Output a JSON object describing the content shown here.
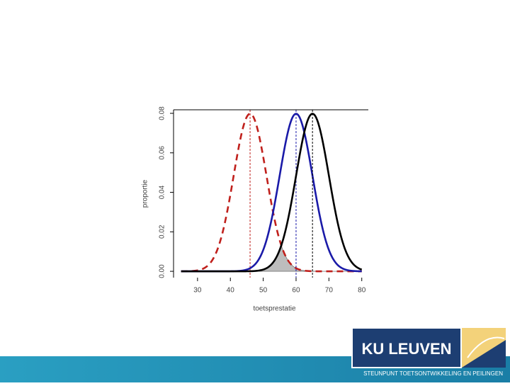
{
  "chart_data": {
    "type": "normal-curves",
    "x_label": "toetsprestatie",
    "y_label": "proportie",
    "xlim": [
      22.7,
      82
    ],
    "ylim": [
      -0.0032,
      0.0818
    ],
    "xticks": [
      30,
      40,
      50,
      60,
      70,
      80
    ],
    "yticks": [
      {
        "value": 0,
        "label": "0.00"
      },
      {
        "value": 0.02,
        "label": "0.02"
      },
      {
        "value": 0.04,
        "label": "0.04"
      },
      {
        "value": 0.06,
        "label": "0.06"
      },
      {
        "value": 0.08,
        "label": "0.08"
      }
    ],
    "x_range": [
      25,
      80
    ],
    "series": [
      {
        "mean": 46,
        "sd": 5,
        "color": "#c0201c",
        "dashed": true
      },
      {
        "mean": 60,
        "sd": 5,
        "color": "#1a1aa8",
        "dashed": false
      },
      {
        "mean": 65,
        "sd": 5,
        "color": "#000000",
        "dashed": false
      }
    ],
    "mean_lines": true,
    "shaded_overlap": [
      0,
      2
    ],
    "shade_color": "#bdbdbd"
  },
  "footer": {
    "logo": "KU LEUVEN",
    "subtitle": "STEUNPUNT TOETSONTWIKKELING EN PEILINGEN"
  }
}
